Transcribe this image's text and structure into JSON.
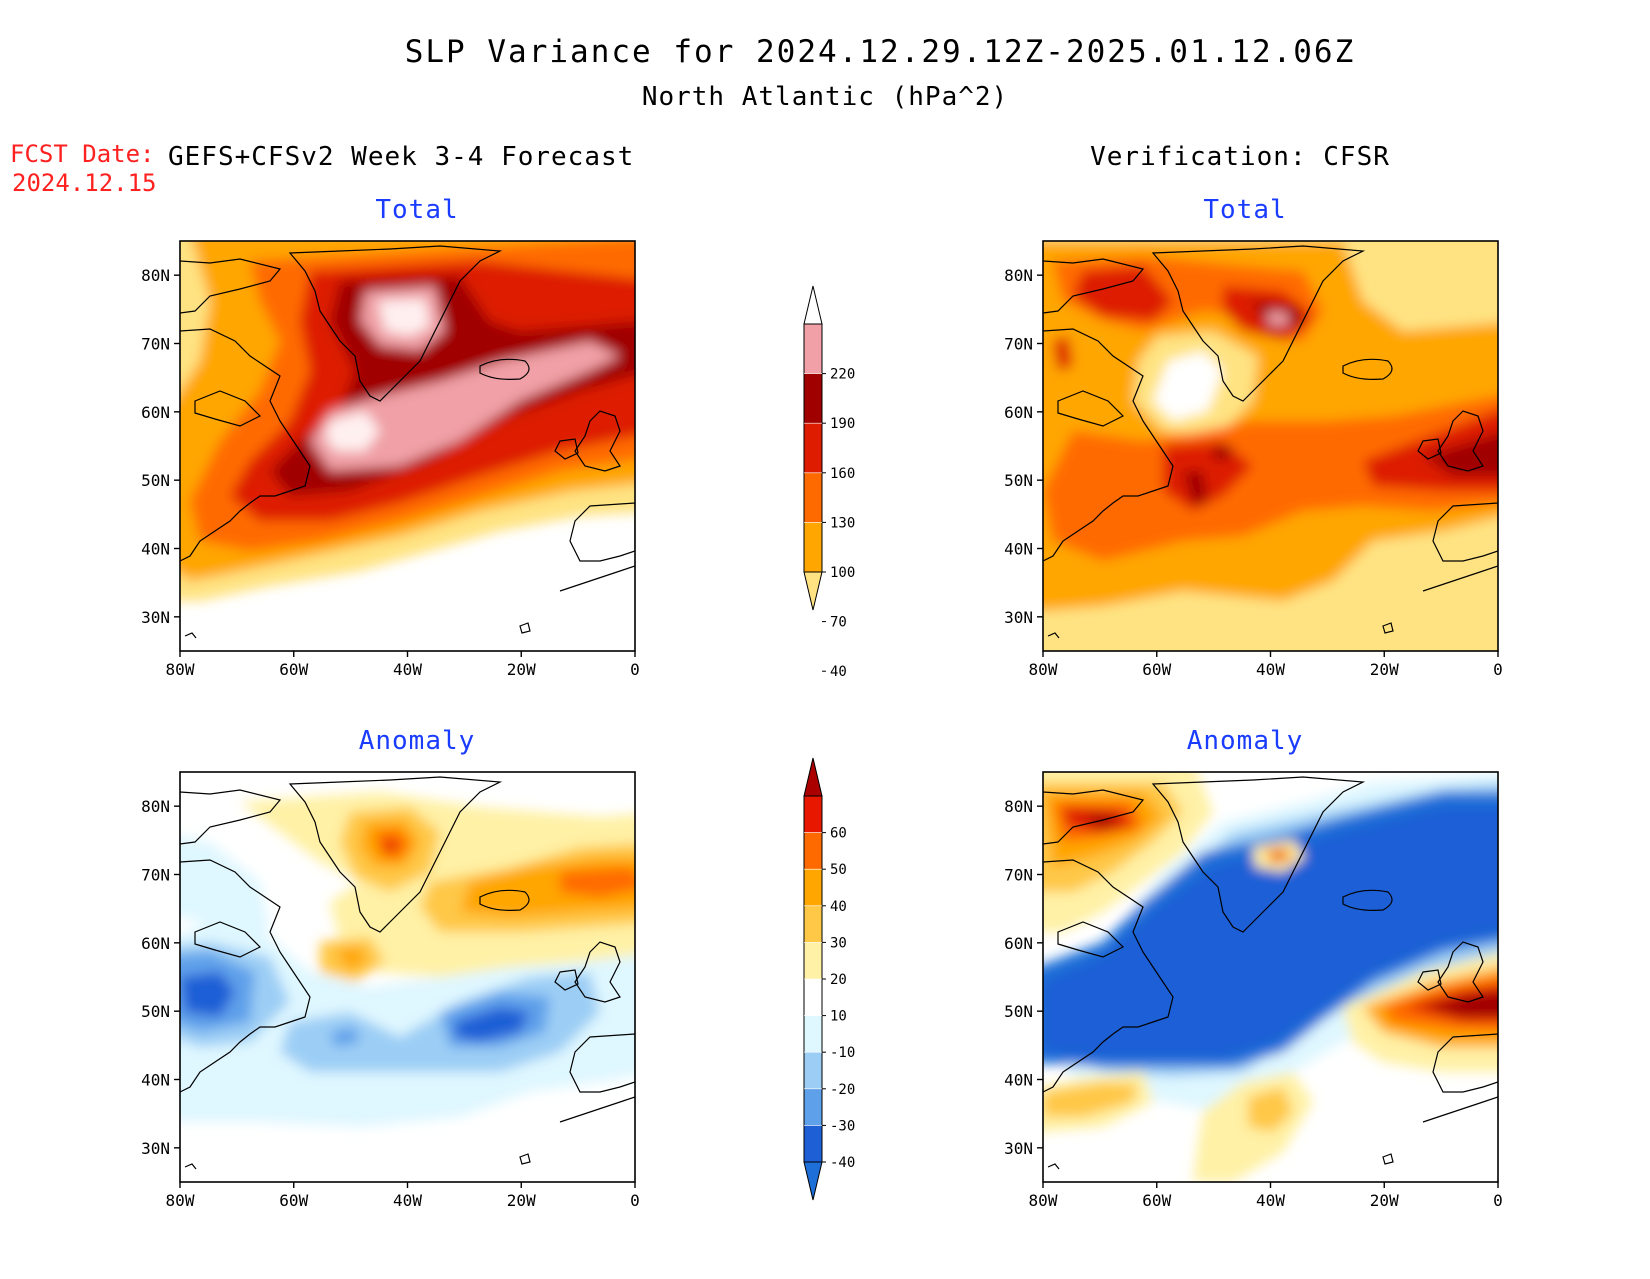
{
  "title": "SLP Variance for 2024.12.29.12Z-2025.01.12.06Z",
  "subtitle": "North Atlantic (hPa^2)",
  "fcst_date_label": "FCST Date:",
  "fcst_date_value": "2024.12.15",
  "left_column_title": "GEFS+CFSv2 Week 3-4 Forecast",
  "right_column_title": "Verification: CFSR",
  "panels": {
    "fcst_total": {
      "label": "Total"
    },
    "fcst_anom": {
      "label": "Anomaly"
    },
    "verif_total": {
      "label": "Total"
    },
    "verif_anom": {
      "label": "Anomaly"
    }
  },
  "axes": {
    "lon_ticks": [
      "80W",
      "60W",
      "40W",
      "20W",
      "0"
    ],
    "lat_ticks": [
      "80N",
      "70N",
      "60N",
      "50N",
      "40N",
      "30N"
    ],
    "lon_range": [
      -80,
      0
    ],
    "lat_range": [
      25,
      85
    ]
  },
  "colorbar_total": {
    "levels": [
      "220",
      "190",
      "160",
      "130",
      "100",
      "70",
      "40"
    ],
    "colors": [
      "#ffffff",
      "#f0a0a6",
      "#a00000",
      "#dd1c00",
      "#ff6a00",
      "#ffa600",
      "#ffe382"
    ]
  },
  "colorbar_anomaly": {
    "levels": [
      "60",
      "50",
      "40",
      "30",
      "20",
      "10",
      "-10",
      "-20",
      "-30",
      "-40"
    ],
    "colors": [
      "#aa0000",
      "#e81800",
      "#ff6a00",
      "#ffa600",
      "#ffc846",
      "#fff1a6",
      "#ffffff",
      "#dff7ff",
      "#9ccef5",
      "#5ea0ea",
      "#1f5fd6",
      "#1e6fd8"
    ]
  }
}
